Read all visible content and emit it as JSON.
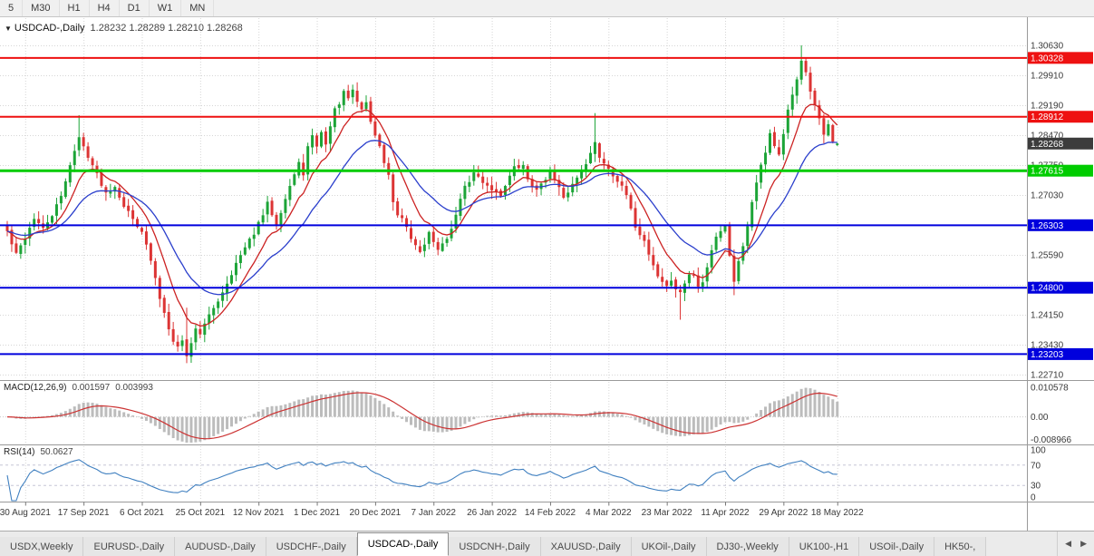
{
  "toolbar": {
    "timeframes": [
      {
        "id": "m5",
        "label": "5"
      },
      {
        "id": "m30",
        "label": "M30"
      },
      {
        "id": "h1",
        "label": "H1"
      },
      {
        "id": "h4",
        "label": "H4"
      },
      {
        "id": "d1",
        "label": "D1"
      },
      {
        "id": "w1",
        "label": "W1"
      },
      {
        "id": "mn",
        "label": "MN"
      }
    ]
  },
  "main_chart": {
    "dropdown_icon": "▼",
    "symbol_label": "USDCAD-,Daily",
    "ohlc_text": "1.28232 1.28289 1.28210 1.28268"
  },
  "macd_panel": {
    "name": "MACD(12,26,9)",
    "value_main": "0.001597",
    "value_signal": "0.003993",
    "axis": [
      "0.010578",
      "0.00",
      "-0.008966"
    ]
  },
  "rsi_panel": {
    "name": "RSI(14)",
    "value": "50.0627",
    "axis": [
      "100",
      "70",
      "30",
      "0"
    ],
    "levels": [
      70,
      30
    ]
  },
  "tabs": {
    "active": "USDCAD-,Daily",
    "scroll_left": "◀",
    "scroll_right": "▶",
    "items": [
      {
        "label": "USDX,Weekly"
      },
      {
        "label": "EURUSD-,Daily"
      },
      {
        "label": "AUDUSD-,Daily"
      },
      {
        "label": "USDCHF-,Daily"
      },
      {
        "label": "USDCAD-,Daily"
      },
      {
        "label": "USDCNH-,Daily"
      },
      {
        "label": "XAUUSD-,Daily"
      },
      {
        "label": "UKOil-,Daily"
      },
      {
        "label": "DJ30-,Weekly"
      },
      {
        "label": "UK100-,H1"
      },
      {
        "label": "USOil-,Daily"
      },
      {
        "label": "HK50-,"
      }
    ]
  },
  "colors": {
    "candle_up": "#1ca437",
    "candle_down": "#dc3434",
    "macd_bar": "#bcbcbc",
    "macd_signal": "#cc3333",
    "rsi_line": "#4080c0",
    "grid": "#d6d6d6",
    "separator": "#9a9a9a",
    "axis_text": "#3a3a3a",
    "badge_text": "#ffffff"
  },
  "chart_data": {
    "type": "candlestick",
    "symbol": "USDCAD-",
    "timeframe": "Daily",
    "current": {
      "open": 1.28232,
      "high": 1.28289,
      "low": 1.2821,
      "close": 1.28268
    },
    "bars_count": 186,
    "noise_seed": 42,
    "price_axis": {
      "labels": [
        "1.30630",
        "1.29910",
        "1.29190",
        "1.28470",
        "1.27750",
        "1.27030",
        "1.26310",
        "1.25590",
        "1.24870",
        "1.24150",
        "1.23430",
        "1.22710"
      ]
    },
    "time_axis": {
      "ticks": [
        {
          "i": 4,
          "label": "30 Aug 2021"
        },
        {
          "i": 17,
          "label": "17 Sep 2021"
        },
        {
          "i": 30,
          "label": "6 Oct 2021"
        },
        {
          "i": 43,
          "label": "25 Oct 2021"
        },
        {
          "i": 56,
          "label": "12 Nov 2021"
        },
        {
          "i": 69,
          "label": "1 Dec 2021"
        },
        {
          "i": 82,
          "label": "20 Dec 2021"
        },
        {
          "i": 95,
          "label": "7 Jan 2022"
        },
        {
          "i": 108,
          "label": "26 Jan 2022"
        },
        {
          "i": 121,
          "label": "14 Feb 2022"
        },
        {
          "i": 134,
          "label": "4 Mar 2022"
        },
        {
          "i": 147,
          "label": "23 Mar 2022"
        },
        {
          "i": 160,
          "label": "11 Apr 2022"
        },
        {
          "i": 173,
          "label": "29 Apr 2022"
        },
        {
          "i": 185,
          "label": "18 May 2022"
        }
      ]
    },
    "price_levels": [
      {
        "price": 1.30328,
        "color": "#ee1111",
        "line": true,
        "width": 2
      },
      {
        "price": 1.28912,
        "color": "#ee1111",
        "line": true,
        "width": 2
      },
      {
        "price": 1.28268,
        "color": "#3c3c3c",
        "line": false,
        "width": 2
      },
      {
        "price": 1.27615,
        "color": "#00cc00",
        "line": true,
        "width": 3
      },
      {
        "price": 1.26303,
        "color": "#0000dd",
        "line": true,
        "width": 2
      },
      {
        "price": 1.248,
        "color": "#0000dd",
        "line": true,
        "width": 2
      },
      {
        "price": 1.23203,
        "color": "#0000dd",
        "line": true,
        "width": 2
      }
    ],
    "moving_averages": [
      {
        "name": "fast-ma",
        "period": 9,
        "color": "#cc2222"
      },
      {
        "name": "slow-ma",
        "period": 22,
        "color": "#2b3fcc"
      }
    ],
    "indicators": [
      {
        "name": "MACD",
        "params": [
          12,
          26,
          9
        ],
        "current_main": 0.001597,
        "current_signal": 0.003993
      },
      {
        "name": "RSI",
        "params": [
          14
        ],
        "current": 50.0627
      }
    ],
    "close_path_anchors": [
      [
        0,
        1.2615
      ],
      [
        1,
        1.2585
      ],
      [
        2,
        1.256
      ],
      [
        4,
        1.26
      ],
      [
        6,
        1.2648
      ],
      [
        8,
        1.262
      ],
      [
        10,
        1.2655
      ],
      [
        12,
        1.2698
      ],
      [
        14,
        1.2778
      ],
      [
        16,
        1.284
      ],
      [
        18,
        1.2798
      ],
      [
        20,
        1.2752
      ],
      [
        22,
        1.2708
      ],
      [
        24,
        1.2725
      ],
      [
        26,
        1.2678
      ],
      [
        28,
        1.2645
      ],
      [
        30,
        1.2618
      ],
      [
        31,
        1.258
      ],
      [
        32,
        1.2545
      ],
      [
        33,
        1.25
      ],
      [
        34,
        1.2455
      ],
      [
        35,
        1.242
      ],
      [
        36,
        1.2385
      ],
      [
        37,
        1.2355
      ],
      [
        38,
        1.2338
      ],
      [
        39,
        1.2352
      ],
      [
        40,
        1.2318
      ],
      [
        41,
        1.2345
      ],
      [
        42,
        1.2385
      ],
      [
        43,
        1.237
      ],
      [
        45,
        1.2412
      ],
      [
        47,
        1.245
      ],
      [
        49,
        1.2492
      ],
      [
        51,
        1.2538
      ],
      [
        53,
        1.2575
      ],
      [
        55,
        1.2612
      ],
      [
        57,
        1.2655
      ],
      [
        58,
        1.2682
      ],
      [
        60,
        1.2635
      ],
      [
        61,
        1.2665
      ],
      [
        63,
        1.2725
      ],
      [
        65,
        1.2778
      ],
      [
        66,
        1.2755
      ],
      [
        67,
        1.2818
      ],
      [
        68,
        1.2842
      ],
      [
        69,
        1.2822
      ],
      [
        70,
        1.2852
      ],
      [
        71,
        1.2828
      ],
      [
        72,
        1.2868
      ],
      [
        73,
        1.2908
      ],
      [
        74,
        1.2925
      ],
      [
        75,
        1.2948
      ],
      [
        76,
        1.2935
      ],
      [
        77,
        1.2952
      ],
      [
        78,
        1.2928
      ],
      [
        79,
        1.2908
      ],
      [
        80,
        1.2928
      ],
      [
        81,
        1.2878
      ],
      [
        82,
        1.2848
      ],
      [
        83,
        1.2818
      ],
      [
        84,
        1.2782
      ],
      [
        85,
        1.2752
      ],
      [
        86,
        1.2682
      ],
      [
        87,
        1.2652
      ],
      [
        88,
        1.2642
      ],
      [
        89,
        1.2622
      ],
      [
        90,
        1.2598
      ],
      [
        91,
        1.2582
      ],
      [
        92,
        1.2568
      ],
      [
        93,
        1.2588
      ],
      [
        94,
        1.2612
      ],
      [
        95,
        1.2592
      ],
      [
        96,
        1.2568
      ],
      [
        97,
        1.2582
      ],
      [
        98,
        1.2602
      ],
      [
        99,
        1.2622
      ],
      [
        100,
        1.2652
      ],
      [
        101,
        1.2698
      ],
      [
        102,
        1.272
      ],
      [
        104,
        1.2755
      ],
      [
        106,
        1.2735
      ],
      [
        108,
        1.2718
      ],
      [
        110,
        1.2702
      ],
      [
        111,
        1.2728
      ],
      [
        113,
        1.2768
      ],
      [
        115,
        1.2772
      ],
      [
        116,
        1.2742
      ],
      [
        118,
        1.2712
      ],
      [
        119,
        1.2732
      ],
      [
        121,
        1.2758
      ],
      [
        123,
        1.2718
      ],
      [
        124,
        1.2692
      ],
      [
        125,
        1.2712
      ],
      [
        127,
        1.2745
      ],
      [
        129,
        1.2782
      ],
      [
        130,
        1.2802
      ],
      [
        131,
        1.2828
      ],
      [
        132,
        1.2795
      ],
      [
        134,
        1.2768
      ],
      [
        136,
        1.2738
      ],
      [
        138,
        1.2702
      ],
      [
        140,
        1.2628
      ],
      [
        142,
        1.2592
      ],
      [
        143,
        1.2562
      ],
      [
        145,
        1.2508
      ],
      [
        147,
        1.2482
      ],
      [
        148,
        1.2498
      ],
      [
        149,
        1.2478
      ],
      [
        150,
        1.2465
      ],
      [
        151,
        1.2492
      ],
      [
        152,
        1.2512
      ],
      [
        153,
        1.2508
      ],
      [
        154,
        1.2482
      ],
      [
        155,
        1.2492
      ],
      [
        156,
        1.2532
      ],
      [
        157,
        1.2572
      ],
      [
        158,
        1.2605
      ],
      [
        159,
        1.2618
      ],
      [
        160,
        1.2628
      ],
      [
        161,
        1.256
      ],
      [
        162,
        1.2498
      ],
      [
        163,
        1.2542
      ],
      [
        164,
        1.2582
      ],
      [
        165,
        1.2632
      ],
      [
        166,
        1.2688
      ],
      [
        167,
        1.2738
      ],
      [
        168,
        1.2775
      ],
      [
        169,
        1.2808
      ],
      [
        170,
        1.2852
      ],
      [
        171,
        1.2822
      ],
      [
        172,
        1.2798
      ],
      [
        173,
        1.2845
      ],
      [
        174,
        1.2905
      ],
      [
        175,
        1.2945
      ],
      [
        176,
        1.2985
      ],
      [
        177,
        1.3022
      ],
      [
        178,
        1.2998
      ],
      [
        179,
        1.2948
      ],
      [
        180,
        1.2915
      ],
      [
        181,
        1.2888
      ],
      [
        182,
        1.2852
      ],
      [
        183,
        1.2872
      ],
      [
        184,
        1.2828
      ],
      [
        185,
        1.28268
      ]
    ],
    "wick_overrides": [
      [
        16,
        "high",
        1.2895
      ],
      [
        40,
        "high",
        1.2432
      ],
      [
        76,
        "high",
        1.2968
      ],
      [
        131,
        "high",
        1.29
      ],
      [
        150,
        "low",
        1.2403
      ],
      [
        162,
        "low",
        1.2462
      ],
      [
        177,
        "high",
        1.3063
      ]
    ]
  }
}
